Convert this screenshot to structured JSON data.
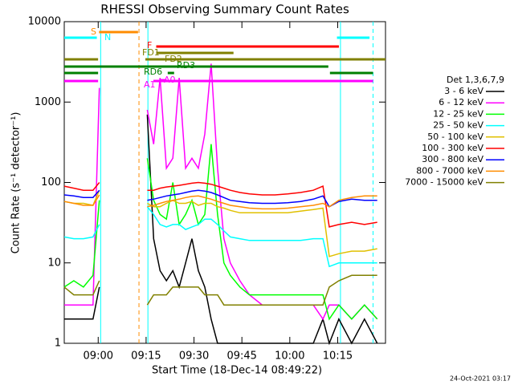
{
  "chart_data": {
    "type": "line",
    "title": "RHESSI Observing Summary Count Rates",
    "x_label": "Start Time (18-Dec-14 08:49:22)",
    "y_label": "Count Rate (s⁻¹ detector⁻¹)",
    "footer": "24-Oct-2021 03:17",
    "legend_title": "Det 1,3,6,7,9",
    "log_y": true,
    "xlim": [
      0,
      100.6
    ],
    "ylim": [
      1,
      10000
    ],
    "xticks": [
      {
        "value": 10.63,
        "label": "09:00"
      },
      {
        "value": 25.63,
        "label": "09:15"
      },
      {
        "value": 40.63,
        "label": "09:30"
      },
      {
        "value": 55.63,
        "label": "09:45"
      },
      {
        "value": 70.63,
        "label": "10:00"
      },
      {
        "value": 85.63,
        "label": "10:15"
      }
    ],
    "yticks": [
      1,
      10,
      100,
      1000,
      10000
    ],
    "x": [
      0,
      3,
      6,
      9,
      11,
      12,
      26,
      28,
      30,
      32,
      34,
      36,
      38,
      40,
      42,
      44,
      46,
      48,
      50,
      52,
      55,
      58,
      62,
      66,
      70,
      74,
      78,
      81,
      83,
      86,
      90,
      94,
      98
    ],
    "series": [
      {
        "name": "3 - 6 keV",
        "color": "#000000",
        "values": [
          2,
          2,
          2,
          2,
          5,
          null,
          700,
          20,
          8,
          6,
          8,
          5,
          10,
          20,
          8,
          5,
          2,
          1,
          1,
          1,
          1,
          1,
          1,
          1,
          1,
          1,
          1,
          2,
          1,
          2,
          1,
          2,
          1
        ]
      },
      {
        "name": "6 - 12 keV",
        "color": "#ff00ff",
        "values": [
          3,
          3,
          3,
          3,
          1500,
          null,
          800,
          300,
          2000,
          150,
          200,
          2000,
          150,
          200,
          150,
          400,
          3000,
          150,
          20,
          10,
          6,
          4,
          3,
          3,
          3,
          3,
          3,
          2,
          3,
          3,
          2,
          3,
          2
        ]
      },
      {
        "name": "12 - 25 keV",
        "color": "#00ff00",
        "values": [
          5,
          6,
          5,
          7,
          60,
          null,
          200,
          60,
          40,
          35,
          100,
          30,
          40,
          60,
          30,
          40,
          300,
          40,
          10,
          7,
          5,
          4,
          4,
          4,
          4,
          4,
          4,
          4,
          2,
          3,
          2,
          3,
          2
        ]
      },
      {
        "name": "25 - 50 keV",
        "color": "#00ffff",
        "values": [
          21,
          20,
          20,
          21,
          30,
          null,
          50,
          40,
          30,
          28,
          30,
          30,
          26,
          28,
          30,
          35,
          35,
          30,
          25,
          21,
          20,
          19,
          19,
          19,
          19,
          19,
          20,
          20,
          9,
          10,
          10,
          10,
          10
        ]
      },
      {
        "name": "50 - 100 keV",
        "color": "#e0c000",
        "values": [
          58,
          55,
          55,
          52,
          80,
          null,
          55,
          50,
          50,
          55,
          60,
          55,
          55,
          58,
          52,
          55,
          55,
          50,
          48,
          45,
          42,
          42,
          42,
          42,
          42,
          44,
          46,
          48,
          12,
          13,
          14,
          14,
          15
        ]
      },
      {
        "name": "100 - 300 keV",
        "color": "#ff0000",
        "values": [
          90,
          85,
          80,
          80,
          100,
          null,
          80,
          80,
          85,
          88,
          90,
          92,
          95,
          98,
          100,
          98,
          95,
          90,
          85,
          80,
          75,
          72,
          70,
          70,
          72,
          75,
          80,
          90,
          28,
          30,
          32,
          30,
          32
        ]
      },
      {
        "name": "300 - 800 keV",
        "color": "#0000ff",
        "values": [
          70,
          68,
          65,
          65,
          80,
          null,
          60,
          62,
          65,
          68,
          70,
          72,
          75,
          78,
          80,
          78,
          75,
          70,
          65,
          60,
          58,
          56,
          55,
          55,
          56,
          58,
          62,
          68,
          50,
          58,
          62,
          60,
          60
        ]
      },
      {
        "name": "800 - 7000 keV",
        "color": "#ff8c00",
        "values": [
          58,
          55,
          52,
          52,
          70,
          null,
          50,
          52,
          55,
          58,
          60,
          62,
          65,
          67,
          68,
          65,
          62,
          58,
          55,
          52,
          50,
          48,
          47,
          47,
          48,
          50,
          52,
          55,
          50,
          60,
          65,
          68,
          68
        ]
      },
      {
        "name": "7000 - 15000 keV",
        "color": "#808000",
        "values": [
          5,
          4,
          4,
          4,
          6,
          null,
          3,
          4,
          4,
          4,
          5,
          5,
          5,
          5,
          5,
          4,
          4,
          4,
          3,
          3,
          3,
          3,
          3,
          3,
          3,
          3,
          3,
          3,
          5,
          6,
          7,
          7,
          7
        ]
      }
    ],
    "flags": [
      {
        "label": "S",
        "color": "#ff8c00",
        "segments": [
          [
            10.9,
            23.1
          ]
        ]
      },
      {
        "label": "N",
        "color": "#00ffff",
        "segments": [
          [
            0,
            10.2
          ],
          [
            85.4,
            95.6
          ]
        ]
      },
      {
        "label": "F",
        "color": "#ff0000",
        "segments": [
          [
            28.8,
            86
          ]
        ]
      },
      {
        "label": "FD1",
        "color": "#808000",
        "segments": [
          [
            28.8,
            53
          ]
        ]
      },
      {
        "label": "FD2",
        "color": "#808000",
        "segments": [
          [
            0,
            10.6
          ],
          [
            25.4,
            100.6
          ]
        ]
      },
      {
        "label": "RD3",
        "color": "#008000",
        "segments": [
          [
            0,
            82.7
          ]
        ]
      },
      {
        "label": "RD6",
        "color": "#008000",
        "segments": [
          [
            0,
            10.6
          ],
          [
            32.4,
            34.4
          ],
          [
            83.2,
            96.7
          ]
        ]
      },
      {
        "label": "A0",
        "color": "#ff00ff",
        "segments": [
          [
            30,
            32
          ]
        ]
      },
      {
        "label": "A1",
        "color": "#ff00ff",
        "segments": [
          [
            0,
            10.6
          ],
          [
            27.9,
            96.7
          ]
        ]
      }
    ],
    "vlines": [
      {
        "x": 11.4,
        "color": "#00ffff",
        "dashed": false
      },
      {
        "x": 23.4,
        "color": "#ff8c00",
        "dashed": true
      },
      {
        "x": 26.2,
        "color": "#00ffff",
        "dashed": false
      },
      {
        "x": 86.5,
        "color": "#00ffff",
        "dashed": false
      },
      {
        "x": 96.7,
        "color": "#00ffff",
        "dashed": true
      }
    ]
  }
}
